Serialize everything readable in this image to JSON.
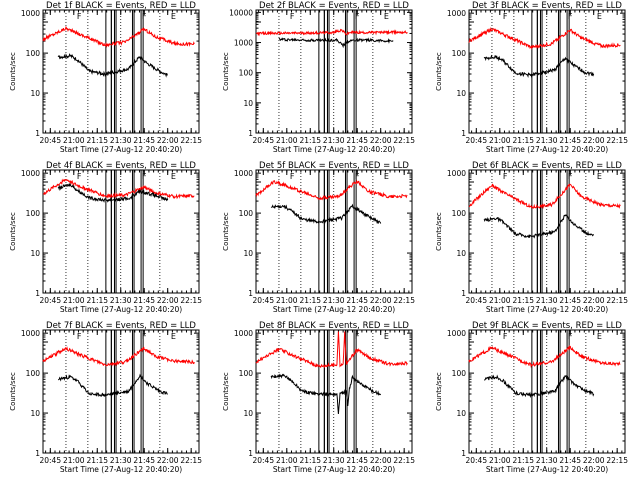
{
  "chart_data": [
    {
      "type": "line",
      "title": "Det 1f BLACK = Events, RED = LLD",
      "ylabel": "Counts/sec",
      "xlabel": "Start Time (27-Aug-12 20:40:20)",
      "x_ticks": [
        "20:45",
        "21:00",
        "21:15",
        "21:30",
        "21:45",
        "22:00",
        "22:15"
      ],
      "x_minutes": [
        45,
        60,
        75,
        90,
        105,
        120,
        135
      ],
      "xlim": [
        40.33,
        140
      ],
      "y_ticks": [
        "1",
        "10",
        "100",
        "1000"
      ],
      "y_tick_values": [
        1,
        10,
        100,
        1000
      ],
      "ylim": [
        1,
        1200
      ],
      "yscale": "log",
      "markers": [
        {
          "label": "F",
          "x": 62
        },
        {
          "label": "F",
          "x": 103.5
        },
        {
          "label": "E",
          "x": 122
        }
      ],
      "series": [
        {
          "name": "LLD",
          "color": "#ff0000",
          "x": [
            40.33,
            55,
            62,
            80,
            93,
            105,
            112,
            125,
            137
          ],
          "values": [
            220,
            420,
            320,
            160,
            190,
            400,
            260,
            170,
            170
          ]
        },
        {
          "name": "Events",
          "color": "#000000",
          "x": [
            50,
            58,
            62,
            70,
            80,
            95,
            102,
            107,
            115,
            120
          ],
          "values": [
            80,
            85,
            70,
            35,
            30,
            40,
            80,
            55,
            35,
            28
          ]
        }
      ]
    },
    {
      "type": "line",
      "title": "Det 2f BLACK = Events, RED = LLD",
      "ylabel": "Counts/sec",
      "xlabel": "Start Time (27-Aug-12 20:40:20)",
      "x_ticks": [
        "20:45",
        "21:00",
        "21:15",
        "21:30",
        "21:45",
        "22:00",
        "22:15"
      ],
      "x_minutes": [
        45,
        60,
        75,
        90,
        105,
        120,
        135
      ],
      "xlim": [
        40.33,
        140
      ],
      "y_ticks": [
        "1",
        "10",
        "100",
        "1000",
        "10000"
      ],
      "y_tick_values": [
        1,
        10,
        100,
        1000,
        10000
      ],
      "ylim": [
        1,
        12000
      ],
      "yscale": "log",
      "markers": [
        {
          "label": "F",
          "x": 62
        },
        {
          "label": "F",
          "x": 103.5
        },
        {
          "label": "E",
          "x": 122
        }
      ],
      "series": [
        {
          "name": "LLD",
          "color": "#ff0000",
          "x": [
            40.33,
            80,
            90,
            95,
            98,
            101,
            105,
            137
          ],
          "values": [
            2000,
            2100,
            2150,
            2600,
            1900,
            2200,
            2150,
            2200
          ]
        },
        {
          "name": "Events",
          "color": "#000000",
          "x": [
            55,
            60,
            75,
            88,
            92,
            96,
            100,
            105,
            113,
            128
          ],
          "values": [
            1300,
            1250,
            1200,
            1200,
            1200,
            800,
            1150,
            1200,
            1200,
            1100
          ]
        }
      ]
    },
    {
      "type": "line",
      "title": "Det 3f BLACK = Events, RED = LLD",
      "ylabel": "Counts/sec",
      "xlabel": "Start Time (27-Aug-12 20:40:20)",
      "x_ticks": [
        "20:45",
        "21:00",
        "21:15",
        "21:30",
        "21:45",
        "22:00",
        "22:15"
      ],
      "x_minutes": [
        45,
        60,
        75,
        90,
        105,
        120,
        135
      ],
      "xlim": [
        40.33,
        140
      ],
      "y_ticks": [
        "1",
        "10",
        "100",
        "1000"
      ],
      "y_tick_values": [
        1,
        10,
        100,
        1000
      ],
      "ylim": [
        1,
        1200
      ],
      "yscale": "log",
      "markers": [
        {
          "label": "F",
          "x": 62
        },
        {
          "label": "F",
          "x": 103.5
        },
        {
          "label": "E",
          "x": 122
        }
      ],
      "series": [
        {
          "name": "LLD",
          "color": "#ff0000",
          "x": [
            40.33,
            55,
            62,
            80,
            93,
            105,
            112,
            125,
            137
          ],
          "values": [
            200,
            400,
            300,
            140,
            170,
            380,
            240,
            150,
            160
          ]
        },
        {
          "name": "Events",
          "color": "#000000",
          "x": [
            50,
            58,
            62,
            70,
            80,
            95,
            102,
            107,
            115,
            120
          ],
          "values": [
            75,
            80,
            65,
            32,
            28,
            38,
            75,
            50,
            32,
            30
          ]
        }
      ]
    },
    {
      "type": "line",
      "title": "Det 4f BLACK = Events, RED = LLD",
      "ylabel": "Counts/sec",
      "xlabel": "Start Time (27-Aug-12 20:40:20)",
      "x_ticks": [
        "20:45",
        "21:00",
        "21:15",
        "21:30",
        "21:45",
        "22:00",
        "22:15"
      ],
      "x_minutes": [
        45,
        60,
        75,
        90,
        105,
        120,
        135
      ],
      "xlim": [
        40.33,
        140
      ],
      "y_ticks": [
        "1",
        "10",
        "100",
        "1000"
      ],
      "y_tick_values": [
        1,
        10,
        100,
        1000
      ],
      "ylim": [
        1,
        1200
      ],
      "yscale": "log",
      "markers": [
        {
          "label": "F",
          "x": 62
        },
        {
          "label": "F",
          "x": 103.5
        },
        {
          "label": "E",
          "x": 122
        }
      ],
      "series": [
        {
          "name": "LLD",
          "color": "#ff0000",
          "x": [
            40.33,
            55,
            62,
            80,
            93,
            105,
            112,
            125,
            137
          ],
          "values": [
            300,
            700,
            500,
            270,
            280,
            450,
            320,
            260,
            270
          ]
        },
        {
          "name": "Events",
          "color": "#000000",
          "x": [
            50,
            58,
            62,
            70,
            80,
            95,
            102,
            107,
            115,
            120
          ],
          "values": [
            420,
            520,
            380,
            240,
            210,
            230,
            350,
            320,
            250,
            210
          ]
        }
      ]
    },
    {
      "type": "line",
      "title": "Det 5f BLACK = Events, RED = LLD",
      "ylabel": "Counts/sec",
      "xlabel": "Start Time (27-Aug-12 20:40:20)",
      "x_ticks": [
        "20:45",
        "21:00",
        "21:15",
        "21:30",
        "21:45",
        "22:00",
        "22:15"
      ],
      "x_minutes": [
        45,
        60,
        75,
        90,
        105,
        120,
        135
      ],
      "xlim": [
        40.33,
        140
      ],
      "y_ticks": [
        "1",
        "10",
        "100",
        "1000"
      ],
      "y_tick_values": [
        1,
        10,
        100,
        1000
      ],
      "ylim": [
        1,
        1200
      ],
      "yscale": "log",
      "markers": [
        {
          "label": "F",
          "x": 62
        },
        {
          "label": "F",
          "x": 103.5
        },
        {
          "label": "E",
          "x": 122
        }
      ],
      "series": [
        {
          "name": "LLD",
          "color": "#ff0000",
          "x": [
            40.33,
            52,
            62,
            80,
            93,
            105,
            112,
            125,
            137
          ],
          "values": [
            280,
            620,
            450,
            240,
            260,
            640,
            350,
            260,
            270
          ]
        },
        {
          "name": "Events",
          "color": "#000000",
          "x": [
            50,
            58,
            62,
            70,
            80,
            95,
            102,
            107,
            115,
            120
          ],
          "values": [
            140,
            150,
            120,
            70,
            60,
            75,
            150,
            110,
            70,
            55
          ]
        }
      ]
    },
    {
      "type": "line",
      "title": "Det 6f BLACK = Events, RED = LLD",
      "ylabel": "Counts/sec",
      "xlabel": "Start Time (27-Aug-12 20:40:20)",
      "x_ticks": [
        "20:45",
        "21:00",
        "21:15",
        "21:30",
        "21:45",
        "22:00",
        "22:15"
      ],
      "x_minutes": [
        45,
        60,
        75,
        90,
        105,
        120,
        135
      ],
      "xlim": [
        40.33,
        140
      ],
      "y_ticks": [
        "1",
        "10",
        "100",
        "1000"
      ],
      "y_tick_values": [
        1,
        10,
        100,
        1000
      ],
      "ylim": [
        1,
        1200
      ],
      "yscale": "log",
      "markers": [
        {
          "label": "F",
          "x": 62
        },
        {
          "label": "F",
          "x": 103.5
        },
        {
          "label": "E",
          "x": 122
        }
      ],
      "series": [
        {
          "name": "LLD",
          "color": "#ff0000",
          "x": [
            40.33,
            55,
            62,
            80,
            93,
            105,
            112,
            125,
            137
          ],
          "values": [
            150,
            500,
            330,
            140,
            160,
            520,
            260,
            160,
            150
          ]
        },
        {
          "name": "Events",
          "color": "#000000",
          "x": [
            50,
            58,
            62,
            70,
            80,
            95,
            102,
            107,
            115,
            120
          ],
          "values": [
            65,
            75,
            60,
            30,
            26,
            34,
            90,
            55,
            32,
            28
          ]
        }
      ]
    },
    {
      "type": "line",
      "title": "Det 7f BLACK = Events, RED = LLD",
      "ylabel": "Counts/sec",
      "xlabel": "Start Time (27-Aug-12 20:40:20)",
      "x_ticks": [
        "20:45",
        "21:00",
        "21:15",
        "21:30",
        "21:45",
        "22:00",
        "22:15"
      ],
      "x_minutes": [
        45,
        60,
        75,
        90,
        105,
        120,
        135
      ],
      "xlim": [
        40.33,
        140
      ],
      "y_ticks": [
        "1",
        "10",
        "100",
        "1000"
      ],
      "y_tick_values": [
        1,
        10,
        100,
        1000
      ],
      "ylim": [
        1,
        1200
      ],
      "yscale": "log",
      "markers": [
        {
          "label": "F",
          "x": 62
        },
        {
          "label": "F",
          "x": 103.5
        },
        {
          "label": "E",
          "x": 122
        }
      ],
      "series": [
        {
          "name": "LLD",
          "color": "#ff0000",
          "x": [
            40.33,
            55,
            62,
            80,
            93,
            105,
            112,
            125,
            137
          ],
          "values": [
            200,
            420,
            310,
            160,
            190,
            420,
            260,
            200,
            190
          ]
        },
        {
          "name": "Events",
          "color": "#000000",
          "x": [
            50,
            58,
            62,
            70,
            80,
            95,
            102,
            107,
            115,
            120
          ],
          "values": [
            70,
            80,
            65,
            30,
            28,
            35,
            85,
            55,
            35,
            30
          ]
        }
      ]
    },
    {
      "type": "line",
      "title": "Det 8f BLACK = Events, RED = LLD",
      "ylabel": "Counts/sec",
      "xlabel": "Start Time (27-Aug-12 20:40:20)",
      "x_ticks": [
        "20:45",
        "21:00",
        "21:15",
        "21:30",
        "21:45",
        "22:00",
        "22:15"
      ],
      "x_minutes": [
        45,
        60,
        75,
        90,
        105,
        120,
        135
      ],
      "xlim": [
        40.33,
        140
      ],
      "y_ticks": [
        "1",
        "10",
        "100",
        "1000"
      ],
      "y_tick_values": [
        1,
        10,
        100,
        1000
      ],
      "ylim": [
        1,
        1200
      ],
      "yscale": "log",
      "markers": [
        {
          "label": "F",
          "x": 62
        },
        {
          "label": "F",
          "x": 103.5
        },
        {
          "label": "E",
          "x": 122
        }
      ],
      "series": [
        {
          "name": "LLD",
          "color": "#ff0000",
          "x": [
            40.33,
            55,
            62,
            80,
            92,
            93,
            94,
            96,
            97,
            98,
            105,
            112,
            125,
            137
          ],
          "values": [
            190,
            400,
            300,
            150,
            160,
            1100,
            160,
            170,
            1100,
            170,
            390,
            250,
            170,
            180
          ]
        },
        {
          "name": "Events",
          "color": "#000000",
          "x": [
            50,
            58,
            62,
            70,
            80,
            92,
            93,
            94,
            98,
            99,
            100,
            102,
            107,
            115,
            120
          ],
          "values": [
            80,
            85,
            70,
            35,
            30,
            30,
            10,
            30,
            35,
            15,
            40,
            80,
            55,
            35,
            30
          ]
        }
      ]
    },
    {
      "type": "line",
      "title": "Det 9f BLACK = Events, RED = LLD",
      "ylabel": "Counts/sec",
      "xlabel": "Start Time (27-Aug-12 20:40:20)",
      "x_ticks": [
        "20:45",
        "21:00",
        "21:15",
        "21:30",
        "21:45",
        "22:00",
        "22:15"
      ],
      "x_minutes": [
        45,
        60,
        75,
        90,
        105,
        120,
        135
      ],
      "xlim": [
        40.33,
        140
      ],
      "y_ticks": [
        "1",
        "10",
        "100",
        "1000"
      ],
      "y_tick_values": [
        1,
        10,
        100,
        1000
      ],
      "ylim": [
        1,
        1200
      ],
      "yscale": "log",
      "markers": [
        {
          "label": "F",
          "x": 62
        },
        {
          "label": "F",
          "x": 103.5
        },
        {
          "label": "E",
          "x": 122
        }
      ],
      "series": [
        {
          "name": "LLD",
          "color": "#ff0000",
          "x": [
            40.33,
            55,
            62,
            80,
            93,
            105,
            112,
            125,
            137
          ],
          "values": [
            200,
            430,
            320,
            160,
            190,
            440,
            260,
            180,
            170
          ]
        },
        {
          "name": "Events",
          "color": "#000000",
          "x": [
            50,
            58,
            62,
            70,
            80,
            95,
            102,
            107,
            115,
            120
          ],
          "values": [
            70,
            80,
            65,
            32,
            28,
            35,
            85,
            55,
            35,
            30
          ]
        }
      ]
    }
  ]
}
